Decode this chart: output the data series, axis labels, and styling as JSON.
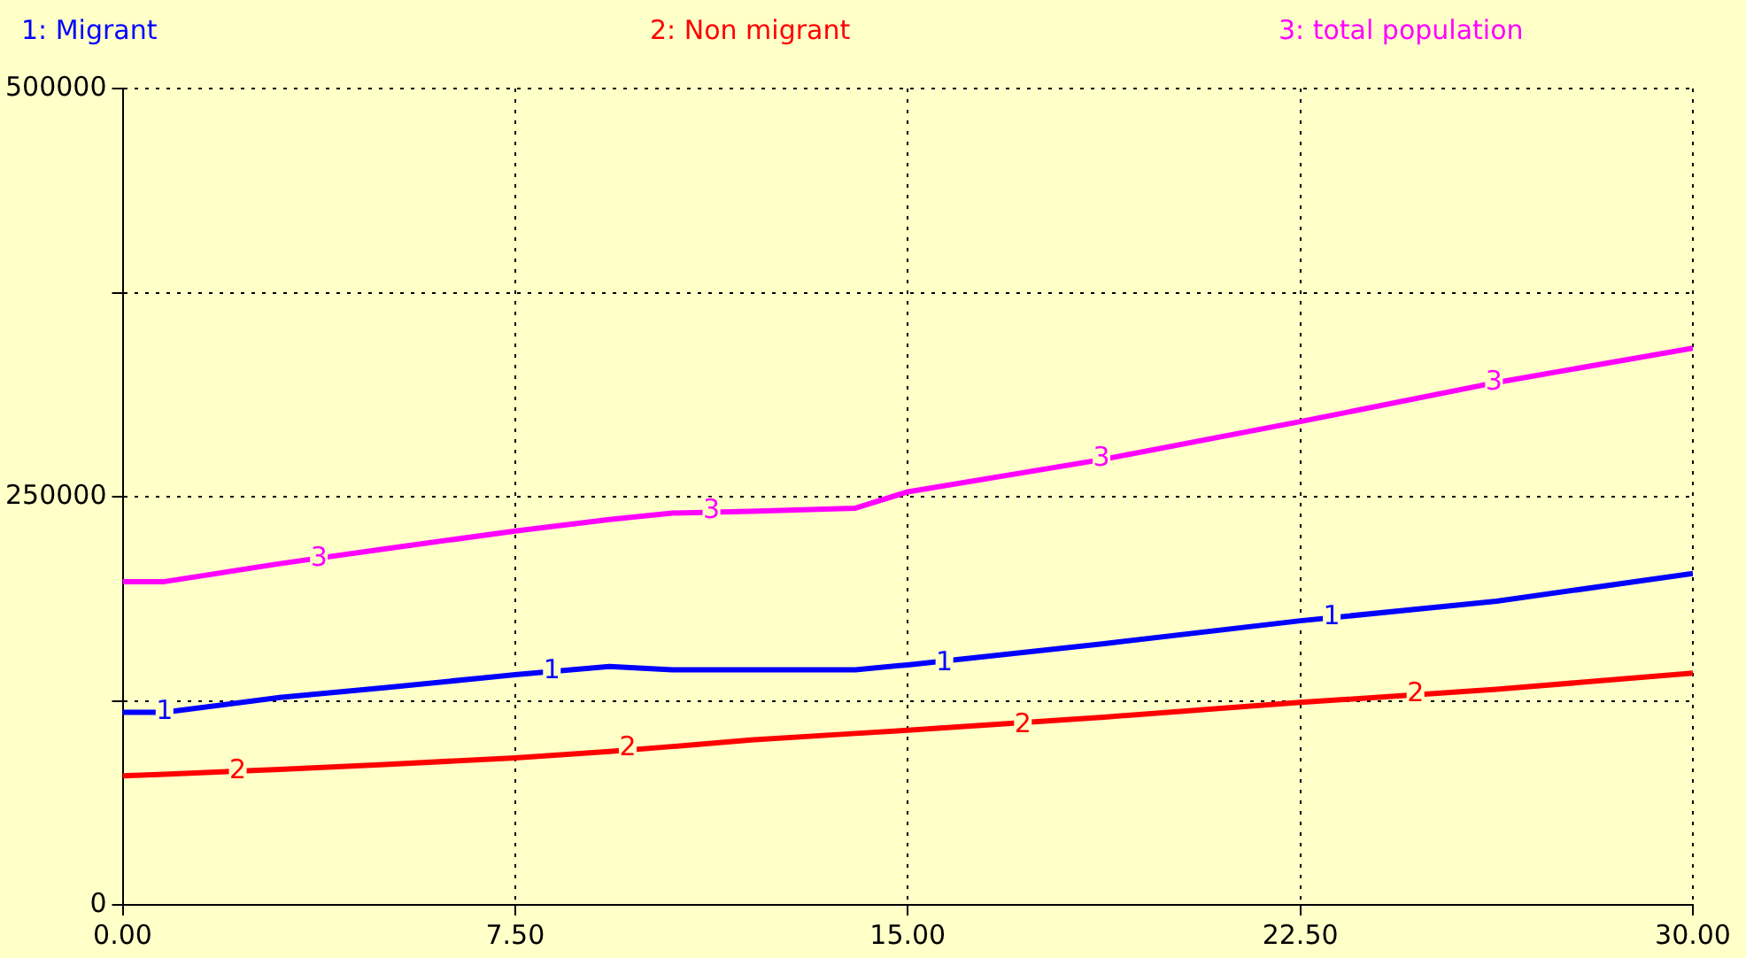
{
  "chart_data": {
    "type": "line",
    "x": [
      0,
      0.8,
      3,
      5,
      7.5,
      9.3,
      10.5,
      12,
      14,
      15,
      18.75,
      22.5,
      26.25,
      30
    ],
    "series": [
      {
        "name": "1: Migrant",
        "color": "#0000ff",
        "values": [
          118000,
          118000,
          127000,
          133000,
          141000,
          146000,
          144000,
          144000,
          144000,
          147000,
          160000,
          174000,
          186000,
          203000
        ]
      },
      {
        "name": "2: Non migrant",
        "color": "#ff0000",
        "values": [
          79000,
          80000,
          83000,
          86000,
          90000,
          94000,
          97000,
          101000,
          105000,
          107000,
          115000,
          124000,
          132000,
          142000
        ]
      },
      {
        "name": "3: total population",
        "color": "#ff00ff",
        "values": [
          198000,
          198000,
          209000,
          218000,
          229000,
          236000,
          240000,
          241000,
          243000,
          253000,
          273000,
          296000,
          320000,
          341000
        ]
      }
    ],
    "xlim": [
      0,
      30
    ],
    "xticks": [
      {
        "value": 0,
        "label": "0.00"
      },
      {
        "value": 7.5,
        "label": "7.50"
      },
      {
        "value": 15,
        "label": "15.00"
      },
      {
        "value": 22.5,
        "label": "22.50"
      },
      {
        "value": 30,
        "label": "30.00"
      }
    ],
    "ylim": [
      0,
      500000
    ],
    "yticks": [
      0,
      {
        "value": 125000,
        "label": null
      },
      250000,
      {
        "value": 375000,
        "label": null
      },
      500000
    ],
    "annotations": [
      {
        "text": "1",
        "x": 0.8,
        "y": 118000
      },
      {
        "text": "1",
        "x": 8.2,
        "y": 143000
      },
      {
        "text": "1",
        "x": 15.7,
        "y": 148000
      },
      {
        "text": "1",
        "x": 23.1,
        "y": 176000
      },
      {
        "text": "2",
        "x": 2.2,
        "y": 82000
      },
      {
        "text": "2",
        "x": 9.65,
        "y": 96000
      },
      {
        "text": "2",
        "x": 17.2,
        "y": 110000
      },
      {
        "text": "2",
        "x": 24.7,
        "y": 129000
      },
      {
        "text": "3",
        "x": 3.75,
        "y": 212000
      },
      {
        "text": "3",
        "x": 11.25,
        "y": 241000
      },
      {
        "text": "3",
        "x": 18.7,
        "y": 273000
      },
      {
        "text": "3",
        "x": 26.2,
        "y": 320000
      }
    ],
    "grid": true,
    "legend": "top",
    "marker": "none",
    "line_style": "solid"
  }
}
